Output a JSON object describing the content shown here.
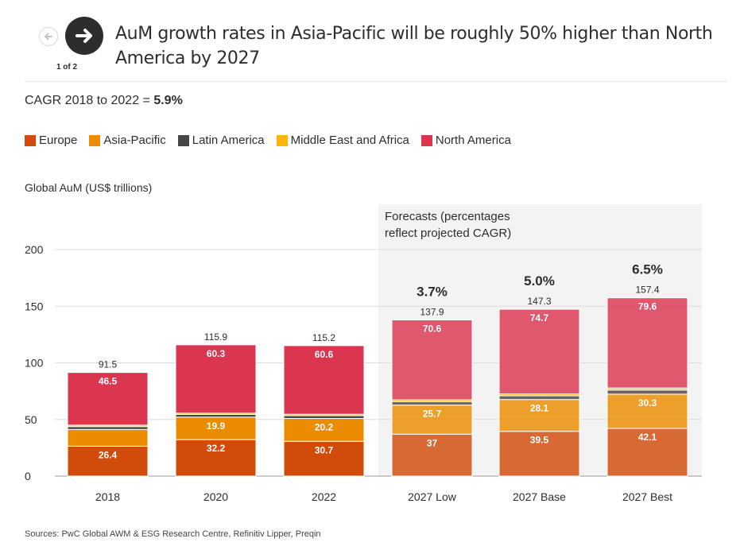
{
  "header": {
    "title": "AuM growth rates in Asia-Pacific will be roughly 50% higher than North America by 2027",
    "pager": "1 of 2",
    "prev_icon": "arrow-left-icon",
    "next_icon": "arrow-right-icon"
  },
  "subtitle": {
    "prefix": "CAGR 2018 to 2022 = ",
    "value": "5.9%"
  },
  "legend": [
    {
      "name": "Europe",
      "color": "#d14b0a"
    },
    {
      "name": "Asia-Pacific",
      "color": "#eb8c00"
    },
    {
      "name": "Latin America",
      "color": "#464646"
    },
    {
      "name": "Middle East and Africa",
      "color": "#ffb600"
    },
    {
      "name": "North America",
      "color": "#db3650"
    }
  ],
  "source": "Sources: PwC Global AWM & ESG Research Centre, Refinitiv Lipper, Preqin",
  "chart_data": {
    "type": "bar",
    "stacked": true,
    "ylabel": "Global AuM (US$ trillions)",
    "ylim": [
      0,
      200
    ],
    "yticks": [
      0,
      50,
      100,
      150,
      200
    ],
    "grid": true,
    "categories": [
      "2018",
      "2020",
      "2022",
      "2027 Low",
      "2027 Base",
      "2027 Best"
    ],
    "series": [
      {
        "name": "Europe",
        "values": [
          26.4,
          32.2,
          30.7,
          37,
          39.5,
          42.1
        ],
        "labels": [
          "26.4",
          "32.2",
          "30.7",
          "37",
          "39.5",
          "42.1"
        ]
      },
      {
        "name": "Asia-Pacific",
        "values": [
          14.8,
          19.9,
          20.2,
          25.7,
          28.1,
          30.3
        ],
        "labels": [
          "",
          "19.9",
          "20.2",
          "25.7",
          "28.1",
          "30.3"
        ]
      },
      {
        "name": "Latin America",
        "values": [
          2.5,
          2.3,
          2.5,
          2.9,
          3.3,
          3.6
        ],
        "labels": [
          "",
          "",
          "",
          "",
          "",
          ""
        ]
      },
      {
        "name": "Middle East and Africa",
        "values": [
          1.3,
          1.2,
          1.2,
          1.7,
          1.7,
          1.8
        ],
        "labels": [
          "",
          "",
          "",
          "",
          "",
          ""
        ]
      },
      {
        "name": "North America",
        "values": [
          46.5,
          60.3,
          60.6,
          70.6,
          74.7,
          79.6
        ],
        "labels": [
          "46.5",
          "60.3",
          "60.6",
          "70.6",
          "74.7",
          "79.6"
        ]
      }
    ],
    "totals": [
      "91.5",
      "115.9",
      "115.2",
      "137.9",
      "147.3",
      "157.4"
    ],
    "forecast": {
      "label_line1": "Forecasts (percentages",
      "label_line2": "reflect projected CAGR)",
      "categories": [
        "2027 Low",
        "2027 Base",
        "2027 Best"
      ],
      "cagr": [
        "3.7%",
        "5.0%",
        "6.5%"
      ]
    }
  }
}
